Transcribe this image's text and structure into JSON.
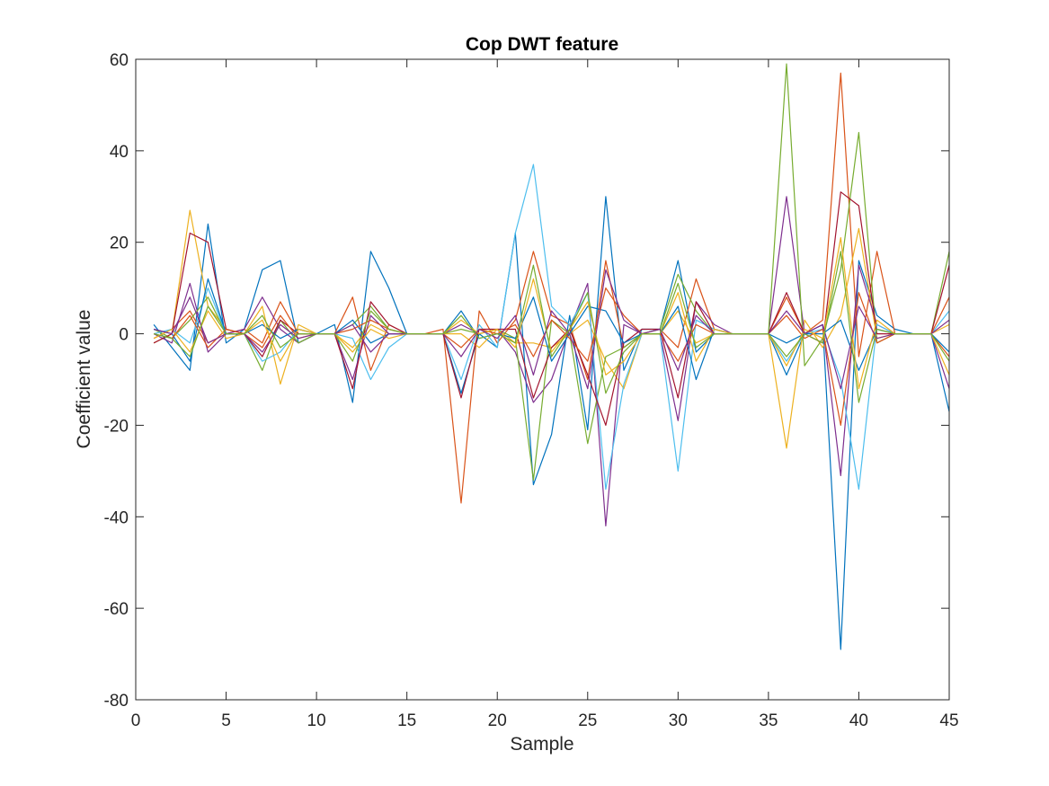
{
  "chart_data": {
    "type": "line",
    "title": "Cop DWT feature",
    "xlabel": "Sample",
    "ylabel": "Coefficient value",
    "xlim": [
      0,
      45
    ],
    "ylim": [
      -80,
      60
    ],
    "xticks": [
      "0",
      "5",
      "10",
      "15",
      "20",
      "25",
      "30",
      "35",
      "40",
      "45"
    ],
    "yticks": [
      "60",
      "40",
      "20",
      "0",
      "-20",
      "-40",
      "-60",
      "-80"
    ],
    "grid": false,
    "legend": "none",
    "x": [
      1,
      2,
      3,
      4,
      5,
      6,
      7,
      8,
      9,
      10,
      11,
      12,
      13,
      14,
      15,
      16,
      17,
      18,
      19,
      20,
      21,
      22,
      23,
      24,
      25,
      26,
      27,
      28,
      29,
      30,
      31,
      32,
      33,
      34,
      35,
      36,
      37,
      38,
      39,
      40,
      41,
      42,
      43,
      44,
      45
    ],
    "colors": [
      "#0072BD",
      "#D95319",
      "#EDB120",
      "#7E2F8E",
      "#77AC30",
      "#4DBEEE",
      "#A2142F"
    ],
    "series": [
      {
        "values": [
          2,
          -3,
          -8,
          24,
          -2,
          1,
          14,
          16,
          -2,
          0,
          2,
          -15,
          18,
          10,
          0,
          0,
          0,
          -13,
          0,
          -3,
          22,
          -33,
          -22,
          4,
          -21,
          30,
          -8,
          1,
          1,
          16,
          -4,
          0,
          0,
          0,
          0,
          -9,
          0,
          2,
          -69,
          16,
          4,
          1,
          0,
          0,
          -17
        ]
      },
      {
        "values": [
          -1,
          1,
          5,
          -2,
          0,
          1,
          -2,
          7,
          0,
          0,
          0,
          8,
          -8,
          2,
          0,
          0,
          1,
          -37,
          5,
          -2,
          3,
          18,
          4,
          2,
          -10,
          16,
          -3,
          0,
          1,
          -3,
          12,
          1,
          0,
          0,
          0,
          8,
          0,
          3,
          57,
          -5,
          18,
          0,
          0,
          0,
          -5
        ]
      },
      {
        "values": [
          -2,
          0,
          27,
          6,
          1,
          0,
          6,
          -11,
          2,
          0,
          0,
          -3,
          2,
          0,
          0,
          0,
          0,
          0,
          -3,
          1,
          -2,
          -2,
          -3,
          0,
          3,
          -6,
          -12,
          0,
          0,
          5,
          -2,
          0,
          0,
          0,
          0,
          -25,
          3,
          -3,
          4,
          23,
          -1,
          0,
          0,
          0,
          2
        ]
      },
      {
        "values": [
          0,
          -2,
          11,
          -4,
          0,
          1,
          8,
          1,
          -2,
          0,
          0,
          -10,
          4,
          0,
          0,
          0,
          0,
          2,
          0,
          1,
          -4,
          -15,
          -10,
          1,
          11,
          -42,
          2,
          0,
          0,
          -19,
          7,
          2,
          0,
          0,
          0,
          30,
          0,
          2,
          -31,
          15,
          2,
          0,
          0,
          0,
          -12
        ]
      },
      {
        "values": [
          1,
          -1,
          3,
          8,
          0,
          0,
          -8,
          3,
          -2,
          0,
          0,
          2,
          6,
          1,
          0,
          0,
          0,
          1,
          0,
          1,
          -1,
          -32,
          3,
          0,
          -24,
          -5,
          -3,
          0,
          1,
          13,
          5,
          0,
          0,
          0,
          0,
          59,
          -7,
          -1,
          14,
          44,
          -2,
          0,
          0,
          0,
          18
        ]
      },
      {
        "values": [
          0,
          1,
          -2,
          10,
          0,
          0,
          -6,
          -4,
          1,
          0,
          0,
          -1,
          -10,
          -3,
          0,
          0,
          0,
          -10,
          2,
          -3,
          22,
          37,
          6,
          2,
          9,
          -34,
          -11,
          0,
          0,
          -30,
          3,
          1,
          0,
          0,
          0,
          -6,
          0,
          1,
          -10,
          -34,
          2,
          0,
          0,
          0,
          5
        ]
      },
      {
        "values": [
          -2,
          0,
          22,
          20,
          1,
          0,
          -5,
          3,
          0,
          0,
          0,
          -12,
          7,
          2,
          0,
          0,
          0,
          -14,
          1,
          1,
          1,
          -14,
          -3,
          1,
          -9,
          -20,
          -2,
          1,
          1,
          -14,
          7,
          0,
          0,
          0,
          0,
          9,
          0,
          -2,
          31,
          28,
          0,
          0,
          0,
          0,
          15
        ]
      },
      {
        "values": [
          1,
          0,
          -6,
          12,
          0,
          0,
          2,
          -1,
          1,
          0,
          0,
          3,
          -2,
          0,
          0,
          0,
          0,
          5,
          -1,
          0,
          -1,
          8,
          -6,
          0,
          6,
          5,
          -2,
          0,
          0,
          6,
          -10,
          1,
          0,
          0,
          0,
          -2,
          0,
          0,
          3,
          -8,
          1,
          0,
          0,
          0,
          -4
        ]
      },
      {
        "values": [
          0,
          -1,
          4,
          -3,
          1,
          0,
          -3,
          4,
          -1,
          0,
          0,
          1,
          3,
          1,
          0,
          0,
          0,
          -3,
          1,
          0,
          2,
          -5,
          3,
          -1,
          -6,
          10,
          4,
          0,
          0,
          -6,
          2,
          0,
          0,
          0,
          0,
          4,
          -1,
          1,
          -20,
          9,
          -2,
          0,
          0,
          0,
          8
        ]
      },
      {
        "values": [
          -1,
          1,
          -4,
          5,
          -1,
          0,
          3,
          -6,
          1,
          0,
          0,
          -4,
          1,
          -1,
          0,
          0,
          0,
          3,
          0,
          1,
          -3,
          12,
          -4,
          1,
          7,
          -9,
          -6,
          0,
          0,
          9,
          -6,
          1,
          0,
          0,
          0,
          -7,
          1,
          -1,
          21,
          -12,
          3,
          0,
          0,
          0,
          -9
        ]
      },
      {
        "values": [
          1,
          0,
          8,
          -2,
          0,
          0,
          -4,
          2,
          -1,
          0,
          0,
          2,
          -4,
          0,
          0,
          0,
          0,
          -5,
          1,
          -1,
          4,
          -9,
          5,
          0,
          -12,
          14,
          3,
          0,
          1,
          -8,
          4,
          0,
          0,
          0,
          0,
          5,
          0,
          2,
          -12,
          6,
          -1,
          0,
          0,
          0,
          3
        ]
      },
      {
        "values": [
          0,
          -1,
          -5,
          6,
          0,
          0,
          4,
          -3,
          0,
          0,
          0,
          -6,
          5,
          1,
          0,
          0,
          0,
          4,
          -1,
          0,
          -2,
          15,
          -5,
          1,
          9,
          -13,
          -4,
          0,
          0,
          11,
          -3,
          0,
          0,
          0,
          0,
          -5,
          0,
          -2,
          18,
          -15,
          1,
          0,
          0,
          0,
          -6
        ]
      }
    ]
  }
}
